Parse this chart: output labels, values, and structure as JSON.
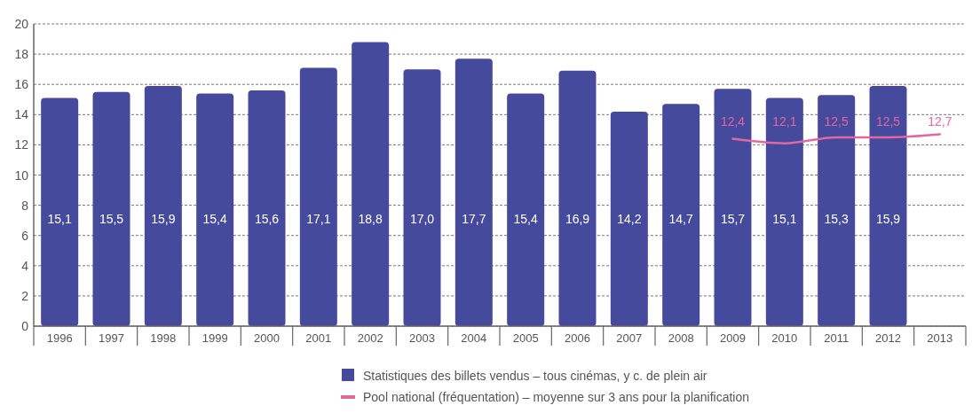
{
  "chart_data": {
    "type": "bar",
    "categories": [
      "1996",
      "1997",
      "1998",
      "1999",
      "2000",
      "2001",
      "2002",
      "2003",
      "2004",
      "2005",
      "2006",
      "2007",
      "2008",
      "2009",
      "2010",
      "2011",
      "2012",
      "2013"
    ],
    "ylim": [
      0,
      20
    ],
    "yticks": [
      0,
      2,
      4,
      6,
      8,
      10,
      12,
      14,
      16,
      18,
      20
    ],
    "grid": "y",
    "legend": "bottom",
    "series": [
      {
        "name": "Statistiques des billets vendus – tous cinémas, y c. de plein air",
        "color": "#464a9c",
        "values": [
          15.1,
          15.5,
          15.9,
          15.4,
          15.6,
          17.1,
          18.8,
          17.0,
          17.7,
          15.4,
          16.9,
          14.2,
          14.7,
          15.7,
          15.1,
          15.3,
          15.9,
          null
        ],
        "value_labels": [
          "15,1",
          "15,5",
          "15,9",
          "15,4",
          "15,6",
          "17,1",
          "18,8",
          "17,0",
          "17,7",
          "15,4",
          "16,9",
          "14,2",
          "14,7",
          "15,7",
          "15,1",
          "15,3",
          "15,9",
          null
        ]
      },
      {
        "name": "Pool national (fréquentation) – moyenne sur 3 ans pour la planification",
        "type": "line",
        "color": "#e0689e",
        "values": [
          null,
          null,
          null,
          null,
          null,
          null,
          null,
          null,
          null,
          null,
          null,
          null,
          null,
          12.4,
          12.1,
          12.5,
          12.5,
          12.7
        ],
        "value_labels": [
          null,
          null,
          null,
          null,
          null,
          null,
          null,
          null,
          null,
          null,
          null,
          null,
          null,
          "12,4",
          "12,1",
          "12,5",
          "12,5",
          "12,7"
        ]
      }
    ]
  }
}
